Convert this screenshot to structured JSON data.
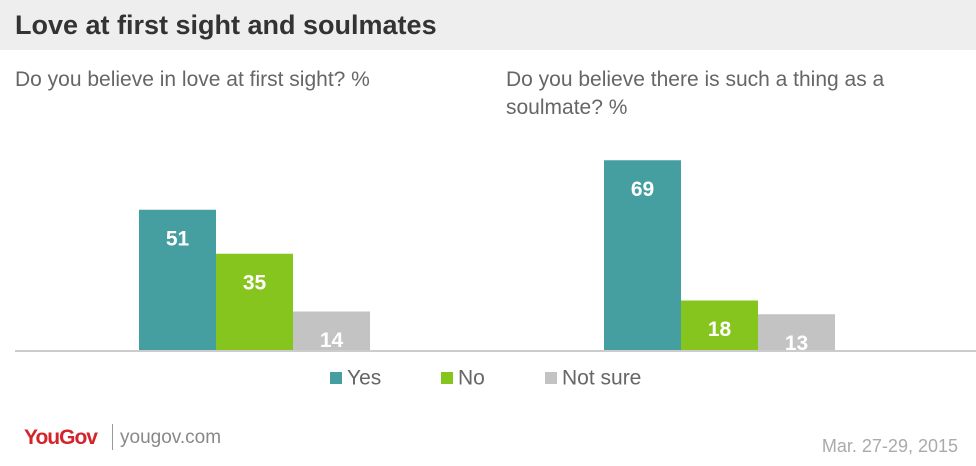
{
  "chart_data": {
    "type": "bar",
    "title": "Love at first sight and soulmates",
    "categories": [
      "Do you believe in love at first sight? %",
      "Do you believe there is such a thing as a soulmate? %"
    ],
    "series": [
      {
        "name": "Yes",
        "color": "#459e9f",
        "values": [
          51,
          69
        ]
      },
      {
        "name": "No",
        "color": "#85c51e",
        "values": [
          35,
          18
        ]
      },
      {
        "name": "Not sure",
        "color": "#c3c3c3",
        "values": [
          14,
          13
        ]
      }
    ]
  },
  "footer": {
    "logo": "YouGov",
    "site": "yougov.com",
    "date": "Mar. 27-29, 2015"
  }
}
